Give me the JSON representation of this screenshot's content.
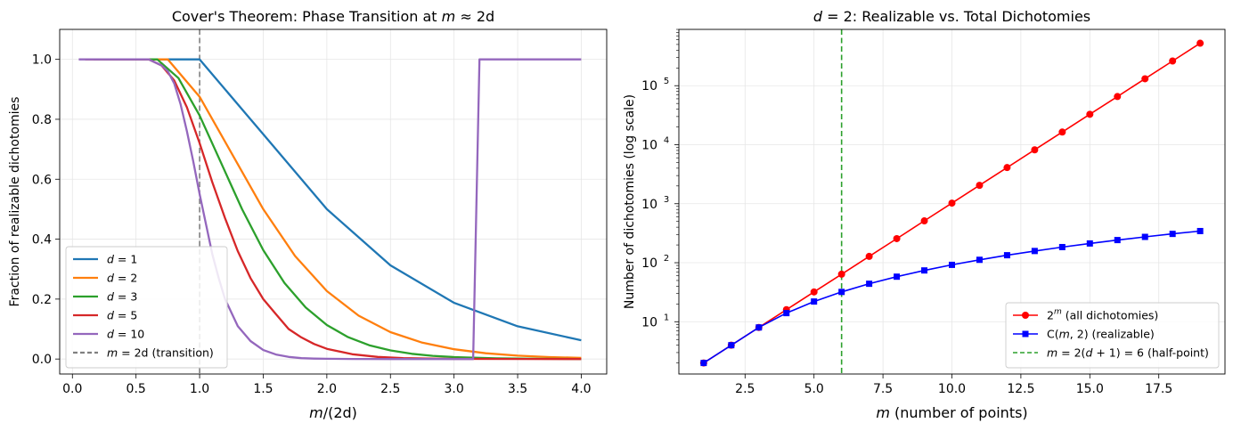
{
  "chart_data": [
    {
      "type": "line",
      "title": "Cover's Theorem: Phase Transition at m ≈ 2d",
      "xlabel": "m/(2d)",
      "ylabel": "Fraction of realizable dichotomies",
      "xlim": [
        -0.1,
        4.2
      ],
      "ylim": [
        -0.05,
        1.1
      ],
      "xticks": [
        0.0,
        0.5,
        1.0,
        1.5,
        2.0,
        2.5,
        3.0,
        3.5,
        4.0
      ],
      "xtick_labels": [
        "0.0",
        "0.5",
        "1.0",
        "1.5",
        "2.0",
        "2.5",
        "3.0",
        "3.5",
        "4.0"
      ],
      "yticks": [
        0.0,
        0.2,
        0.4,
        0.6,
        0.8,
        1.0
      ],
      "ytick_labels": [
        "0.0",
        "0.2",
        "0.4",
        "0.6",
        "0.8",
        "1.0"
      ],
      "grid": true,
      "legend_position": "lower-left",
      "series": [
        {
          "name": "d = 1",
          "color": "#1f77b4",
          "x": [
            0.5,
            1.0,
            1.5,
            2.0,
            2.5,
            3.0,
            3.5,
            4.0
          ],
          "y": [
            1.0,
            1.0,
            0.75,
            0.5,
            0.3125,
            0.1875,
            0.1094,
            0.0625
          ]
        },
        {
          "name": "d = 2",
          "color": "#ff7f0e",
          "x": [
            0.25,
            0.5,
            0.75,
            1.0,
            1.25,
            1.5,
            1.75,
            2.0,
            2.25,
            2.5,
            2.75,
            3.0,
            3.25,
            3.5,
            3.75,
            4.0
          ],
          "y": [
            1.0,
            1.0,
            1.0,
            0.875,
            0.6875,
            0.5,
            0.3438,
            0.2266,
            0.1445,
            0.0898,
            0.0547,
            0.0327,
            0.0193,
            0.0112,
            0.0065,
            0.0037
          ]
        },
        {
          "name": "d = 3",
          "color": "#2ca02c",
          "x": [
            0.1667,
            0.3333,
            0.5,
            0.6667,
            0.8333,
            1.0,
            1.1667,
            1.3333,
            1.5,
            1.6667,
            1.8333,
            2.0,
            2.1667,
            2.3333,
            2.5,
            2.6667,
            2.8333,
            3.0,
            3.3333,
            3.6667,
            4.0
          ],
          "y": [
            1.0,
            1.0,
            1.0,
            1.0,
            0.9375,
            0.8125,
            0.6563,
            0.5,
            0.3633,
            0.2539,
            0.1719,
            0.1133,
            0.073,
            0.0461,
            0.0287,
            0.0176,
            0.0106,
            0.0064,
            0.0023,
            0.0008,
            0.0003
          ]
        },
        {
          "name": "d = 5",
          "color": "#d62728",
          "x": [
            0.1,
            0.2,
            0.3,
            0.4,
            0.5,
            0.6,
            0.7,
            0.8,
            0.9,
            1.0,
            1.1,
            1.2,
            1.3,
            1.4,
            1.5,
            1.6,
            1.7,
            1.8,
            1.9,
            2.0,
            2.2,
            2.4,
            2.6,
            2.8,
            3.0,
            3.5,
            4.0
          ],
          "y": [
            1.0,
            1.0,
            1.0,
            1.0,
            1.0,
            1.0,
            0.98,
            0.93,
            0.84,
            0.72,
            0.59,
            0.47,
            0.36,
            0.27,
            0.2,
            0.15,
            0.1,
            0.072,
            0.05,
            0.034,
            0.016,
            0.007,
            0.003,
            0.0014,
            0.0006,
            0.0001,
            0.0
          ]
        },
        {
          "name": "d = 10",
          "color": "#9467bd",
          "x": [
            0.05,
            0.2,
            0.4,
            0.6,
            0.7,
            0.75,
            0.8,
            0.85,
            0.9,
            0.95,
            1.0,
            1.05,
            1.1,
            1.15,
            1.2,
            1.3,
            1.4,
            1.5,
            1.6,
            1.7,
            1.8,
            1.9,
            2.0,
            2.2,
            2.5,
            3.0,
            3.15,
            3.2,
            3.5,
            4.0
          ],
          "y": [
            1.0,
            1.0,
            1.0,
            1.0,
            0.98,
            0.96,
            0.92,
            0.85,
            0.76,
            0.66,
            0.55,
            0.45,
            0.35,
            0.27,
            0.2,
            0.11,
            0.06,
            0.03,
            0.015,
            0.007,
            0.003,
            0.0015,
            0.0007,
            0.0001,
            0.0,
            0.0,
            0.0,
            1.0,
            1.0,
            1.0
          ]
        }
      ],
      "annotations": [
        {
          "type": "vline",
          "x": 1.0,
          "label": "m = 2d (transition)",
          "color": "#808080",
          "style": "dashed"
        }
      ]
    },
    {
      "type": "line",
      "title": "d = 2: Realizable vs. Total Dichotomies",
      "xlabel": "m (number of points)",
      "ylabel": "Number of dichotomies (log scale)",
      "x_scale": "linear",
      "y_scale": "log",
      "xlim": [
        0.1,
        19.9
      ],
      "ylim": [
        1.3,
        900000
      ],
      "xticks": [
        2.5,
        5.0,
        7.5,
        10.0,
        12.5,
        15.0,
        17.5
      ],
      "xtick_labels": [
        "2.5",
        "5.0",
        "7.5",
        "10.0",
        "12.5",
        "15.0",
        "17.5"
      ],
      "yticks": [
        10,
        100,
        1000,
        10000,
        100000
      ],
      "ytick_labels": [
        "10^1",
        "10^2",
        "10^3",
        "10^4",
        "10^5"
      ],
      "grid": true,
      "legend_position": "lower-right",
      "series": [
        {
          "name": "2^m (all dichotomies)",
          "color": "#ff0000",
          "marker": "circle",
          "x": [
            1,
            2,
            3,
            4,
            5,
            6,
            7,
            8,
            9,
            10,
            11,
            12,
            13,
            14,
            15,
            16,
            17,
            18,
            19
          ],
          "y": [
            2,
            4,
            8,
            16,
            32,
            64,
            128,
            256,
            512,
            1024,
            2048,
            4096,
            8192,
            16384,
            32768,
            65536,
            131072,
            262144,
            524288
          ]
        },
        {
          "name": "C(m, 2) (realizable)",
          "color": "#0000ff",
          "marker": "square",
          "x": [
            1,
            2,
            3,
            4,
            5,
            6,
            7,
            8,
            9,
            10,
            11,
            12,
            13,
            14,
            15,
            16,
            17,
            18,
            19
          ],
          "y": [
            2,
            4,
            8,
            14,
            22,
            32,
            44,
            58,
            74,
            92,
            112,
            134,
            158,
            184,
            212,
            242,
            274,
            308,
            344
          ]
        }
      ],
      "annotations": [
        {
          "type": "vline",
          "x": 6,
          "label": "m = 2(d + 1) = 6 (half-point)",
          "color": "#2ca02c",
          "style": "dashed"
        }
      ]
    }
  ]
}
